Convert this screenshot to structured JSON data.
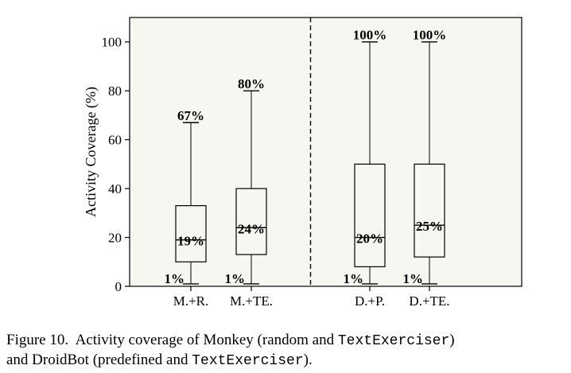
{
  "chart_data": {
    "type": "box",
    "ylabel": "Activity Coverage (%)",
    "ylim": [
      0,
      110
    ],
    "yticks": [
      0,
      20,
      40,
      60,
      80,
      100
    ],
    "categories": [
      "M.+R.",
      "M.+TE.",
      "D.+P.",
      "D.+TE."
    ],
    "boxes": [
      {
        "label": "M.+R.",
        "min": 1,
        "q1": 10,
        "median": 19,
        "q3": 33,
        "max": 67,
        "min_label": "1%",
        "median_label": "19%",
        "max_label": "67%"
      },
      {
        "label": "M.+TE.",
        "min": 1,
        "q1": 13,
        "median": 24,
        "q3": 40,
        "max": 80,
        "min_label": "1%",
        "median_label": "24%",
        "max_label": "80%"
      },
      {
        "label": "D.+P.",
        "min": 1,
        "q1": 8,
        "median": 20,
        "q3": 50,
        "max": 100,
        "min_label": "1%",
        "median_label": "20%",
        "max_label": "100%"
      },
      {
        "label": "D.+TE.",
        "min": 1,
        "q1": 12,
        "median": 25,
        "q3": 50,
        "max": 100,
        "min_label": "1%",
        "median_label": "25%",
        "max_label": "100%"
      }
    ],
    "divider": "dashed vertical line between M.+TE. and D.+P.",
    "grid": false,
    "background": "#f8f6f1"
  },
  "caption": {
    "prefix": "Figure 10.",
    "line1_text": "Activity coverage of Monkey (random and ",
    "code1": "TextExerciser",
    "line1_end": ")",
    "line2_text": "and DroidBot (predefined and ",
    "code2": "TextExerciser",
    "line2_end": ")."
  }
}
